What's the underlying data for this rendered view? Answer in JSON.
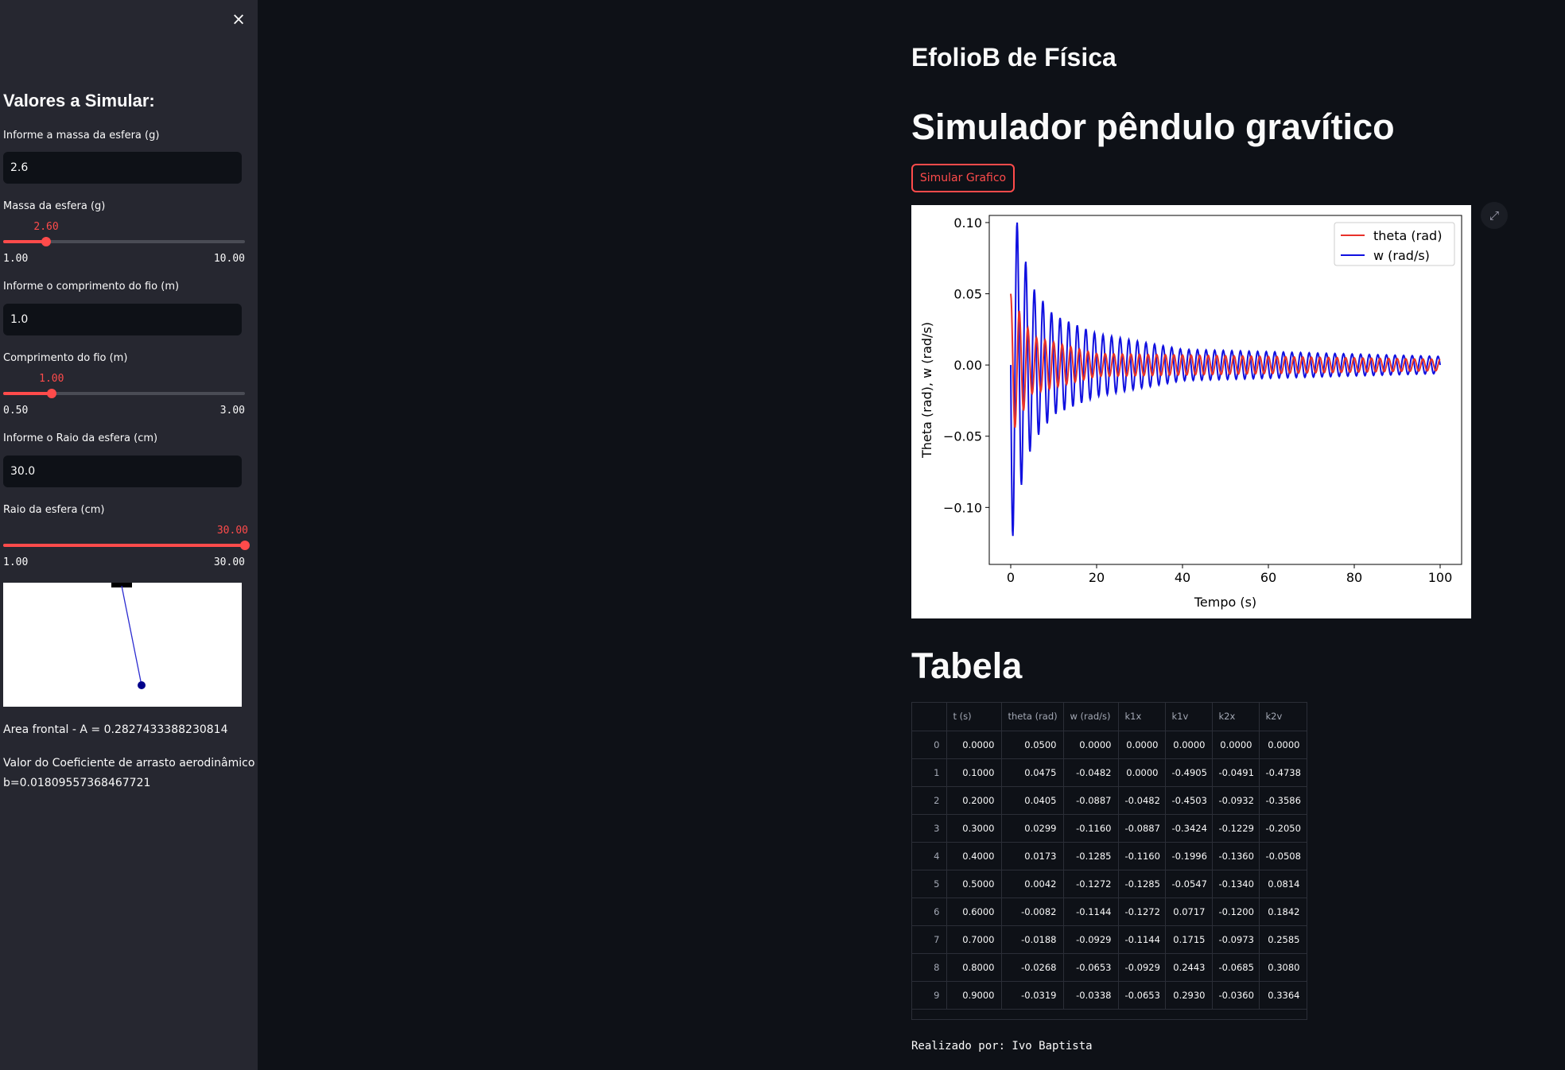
{
  "sidebar": {
    "close_glyph": "×",
    "header": "Valores a Simular:",
    "mass_input": {
      "label": "Informe a massa da esfera (g)",
      "value": "2.6"
    },
    "mass_slider": {
      "label": "Massa da esfera (g)",
      "value": 2.6,
      "value_text": "2.60",
      "min": 1,
      "max": 10,
      "min_text": "1.00",
      "max_text": "10.00"
    },
    "length_input": {
      "label": "Informe o comprimento do fio (m)",
      "value": "1.0"
    },
    "length_slider": {
      "label": "Comprimento do fio (m)",
      "value": 1.0,
      "value_text": "1.00",
      "min": 0.5,
      "max": 3,
      "min_text": "0.50",
      "max_text": "3.00"
    },
    "radius_input": {
      "label": "Informe o Raio da esfera (cm)",
      "value": "30.0"
    },
    "radius_slider": {
      "label": "Raio da esfera (cm)",
      "value": 30,
      "value_text": "30.00",
      "min": 1,
      "max": 30,
      "min_text": "1.00",
      "max_text": "30.00"
    },
    "area_text": "Area frontal - A = 0.2827433388230814",
    "drag_text_line1": "Valor do Coeficiente de arrasto aerodinâmico",
    "drag_text_line2": "b = 0.018095573684677 21"
  },
  "main": {
    "app_title": "EfolioB de Física",
    "sim_title": "Simulador pêndulo gravítico",
    "simulate_button": "Simular Grafico",
    "expand_icon": "⤢",
    "table_title": "Tabela",
    "footer": "Realizado por: Ivo Baptista"
  },
  "table": {
    "columns": [
      "",
      "t (s)",
      "theta (rad)",
      "w (rad/s)",
      "k1x",
      "k1v",
      "k2x",
      "k2v"
    ],
    "rows": [
      [
        "0",
        "0.0000",
        "0.0500",
        "0.0000",
        "0.0000",
        "0.0000",
        "0.0000",
        "0.0000"
      ],
      [
        "1",
        "0.1000",
        "0.0475",
        "-0.0482",
        "0.0000",
        "-0.4905",
        "-0.0491",
        "-0.4738"
      ],
      [
        "2",
        "0.2000",
        "0.0405",
        "-0.0887",
        "-0.0482",
        "-0.4503",
        "-0.0932",
        "-0.3586"
      ],
      [
        "3",
        "0.3000",
        "0.0299",
        "-0.1160",
        "-0.0887",
        "-0.3424",
        "-0.1229",
        "-0.2050"
      ],
      [
        "4",
        "0.4000",
        "0.0173",
        "-0.1285",
        "-0.1160",
        "-0.1996",
        "-0.1360",
        "-0.0508"
      ],
      [
        "5",
        "0.5000",
        "0.0042",
        "-0.1272",
        "-0.1285",
        "-0.0547",
        "-0.1340",
        "0.0814"
      ],
      [
        "6",
        "0.6000",
        "-0.0082",
        "-0.1144",
        "-0.1272",
        "0.0717",
        "-0.1200",
        "0.1842"
      ],
      [
        "7",
        "0.7000",
        "-0.0188",
        "-0.0929",
        "-0.1144",
        "0.1715",
        "-0.0973",
        "0.2585"
      ],
      [
        "8",
        "0.8000",
        "-0.0268",
        "-0.0653",
        "-0.0929",
        "0.2443",
        "-0.0685",
        "0.3080"
      ],
      [
        "9",
        "0.9000",
        "-0.0319",
        "-0.0338",
        "-0.0653",
        "0.2930",
        "-0.0360",
        "0.3364"
      ]
    ]
  },
  "chart_data": {
    "type": "line",
    "xlabel": "Tempo (s)",
    "ylabel": "Theta (rad), w (rad/s)",
    "xlim": [
      -5,
      105
    ],
    "ylim": [
      -0.14,
      0.105
    ],
    "xticks": [
      0,
      20,
      40,
      60,
      80,
      100
    ],
    "xtick_labels": [
      "0",
      "20",
      "40",
      "60",
      "80",
      "100"
    ],
    "yticks": [
      0.1,
      0.05,
      0.0,
      -0.05,
      -0.1
    ],
    "ytick_labels": [
      "0.10",
      "0.05",
      "0.00",
      "−0.05",
      "−0.10"
    ],
    "legend_position": "top-right",
    "series": [
      {
        "name": "theta (rad)",
        "color": "#e8312a",
        "initial_amplitude": 0.05,
        "period": 2.0,
        "envelope": [
          [
            0,
            0.05
          ],
          [
            5,
            0.02
          ],
          [
            20,
            0.008
          ],
          [
            100,
            0.004
          ]
        ]
      },
      {
        "name": "w (rad/s)",
        "color": "#1010e0",
        "initial_amplitude": 0.13,
        "period": 2.0,
        "envelope": [
          [
            0,
            0.13
          ],
          [
            2,
            0.09
          ],
          [
            5,
            0.055
          ],
          [
            10,
            0.035
          ],
          [
            20,
            0.022
          ],
          [
            40,
            0.011
          ],
          [
            100,
            0.006
          ]
        ]
      }
    ]
  },
  "pendulum": {
    "bob_color": "#00008b",
    "string_color": "#2b2bd0",
    "pivot_color": "#000000"
  }
}
